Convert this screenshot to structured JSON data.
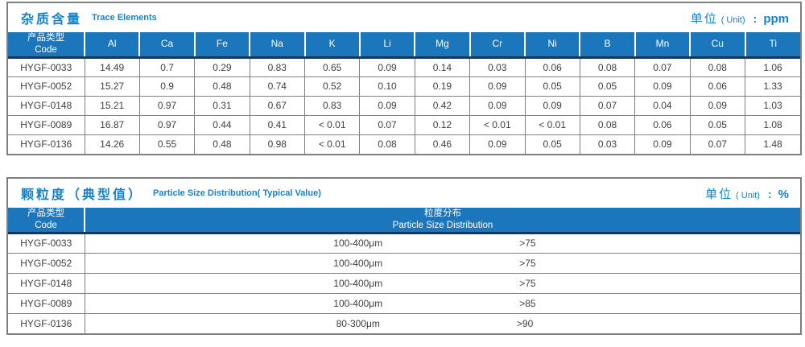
{
  "colors": {
    "header_blue": "#1c76bc",
    "title_blue": "#1583c9",
    "dark_navy_rule": "#17365d",
    "grid_gray": "#808080",
    "outer_border_gray": "#7f7f7f",
    "body_text": "#404040"
  },
  "table1": {
    "title_cn": "杂质含量",
    "title_en": "Trace Elements",
    "unit_cn": "单位",
    "unit_en": "( Unit)",
    "unit_colon": ":",
    "unit_value": "ppm",
    "header": {
      "code_cn": "产品类型",
      "code_en": "Code",
      "elements": [
        "Al",
        "Ca",
        "Fe",
        "Na",
        "K",
        "Li",
        "Mg",
        "Cr",
        "Ni",
        "B",
        "Mn",
        "Cu",
        "Ti"
      ]
    },
    "rows": [
      {
        "code": "HYGF-0033",
        "values": [
          "14.49",
          "0.7",
          "0.29",
          "0.83",
          "0.65",
          "0.09",
          "0.14",
          "0.03",
          "0.06",
          "0.08",
          "0.07",
          "0.08",
          "1.06"
        ]
      },
      {
        "code": "HYGF-0052",
        "values": [
          "15.27",
          "0.9",
          "0.48",
          "0.74",
          "0.52",
          "0.10",
          "0.19",
          "0.09",
          "0.05",
          "0.05",
          "0.09",
          "0.06",
          "1.33"
        ]
      },
      {
        "code": "HYGF-0148",
        "values": [
          "15.21",
          "0.97",
          "0.31",
          "0.67",
          "0.83",
          "0.09",
          "0.42",
          "0.09",
          "0.09",
          "0.07",
          "0.04",
          "0.09",
          "1.03"
        ]
      },
      {
        "code": "HYGF-0089",
        "values": [
          "16.87",
          "0.97",
          "0.44",
          "0.41",
          "< 0.01",
          "0.07",
          "0.12",
          "< 0.01",
          "< 0.01",
          "0.08",
          "0.06",
          "0.05",
          "1.08"
        ]
      },
      {
        "code": "HYGF-0136",
        "values": [
          "14.26",
          "0.55",
          "0.48",
          "0.98",
          "< 0.01",
          "0.08",
          "0.46",
          "0.09",
          "0.05",
          "0.03",
          "0.09",
          "0.07",
          "1.48"
        ]
      }
    ]
  },
  "table2": {
    "title_cn": "颗粒度（典型值）",
    "title_en": "Particle Size Distribution( Typical Value)",
    "unit_cn": "单位",
    "unit_en": "( Unit)",
    "unit_colon": ":",
    "unit_value": "%",
    "header": {
      "code_cn": "产品类型",
      "code_en": "Code",
      "dist_cn": "粒度分布",
      "dist_en": "Particle Size  Distribution"
    },
    "rows": [
      {
        "code": "HYGF-0033",
        "range": "100-400μm",
        "value": ">75"
      },
      {
        "code": "HYGF-0052",
        "range": "100-400μm",
        "value": ">75"
      },
      {
        "code": "HYGF-0148",
        "range": "100-400μm",
        "value": ">75"
      },
      {
        "code": "HYGF-0089",
        "range": "100-400μm",
        "value": ">85"
      },
      {
        "code": "HYGF-0136",
        "range": "80-300μm",
        "value": ">90"
      }
    ]
  }
}
